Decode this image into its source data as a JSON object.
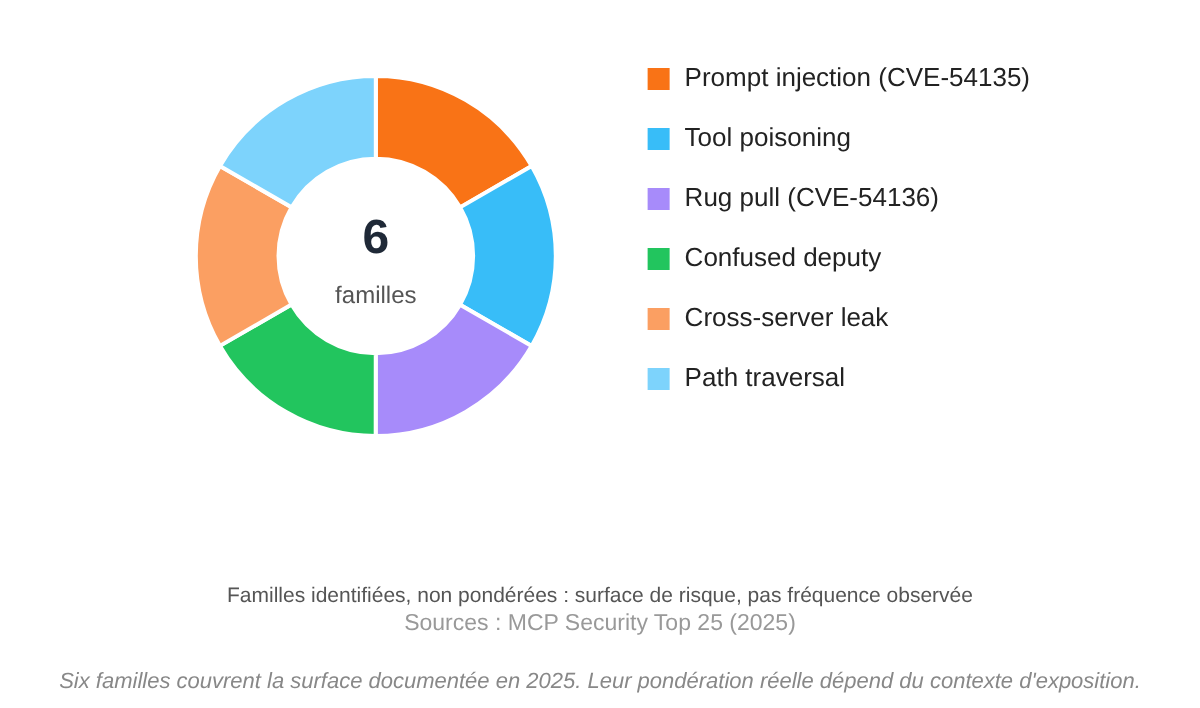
{
  "chart_data": {
    "type": "donut",
    "categories": [
      "Prompt injection (CVE-54135)",
      "Tool poisoning",
      "Rug pull (CVE-54136)",
      "Confused deputy",
      "Cross-server leak",
      "Path traversal"
    ],
    "values": [
      16.67,
      16.67,
      16.67,
      16.67,
      16.66,
      16.66
    ],
    "colors": [
      "#f97316",
      "#38bdf8",
      "#a78bfa",
      "#22c55e",
      "#fb9f62",
      "#7dd3fc"
    ],
    "legend": "top right",
    "annotations": [
      "6",
      "familles",
      "Familles identifiées, non pondérées : surface de risque, pas fréquence observée",
      "Sources : MCP Security Top 25 (2025)",
      "Six familles couvrent la surface documentée en 2025. Leur pondération réelle dépend du contexte d'exposition."
    ]
  }
}
